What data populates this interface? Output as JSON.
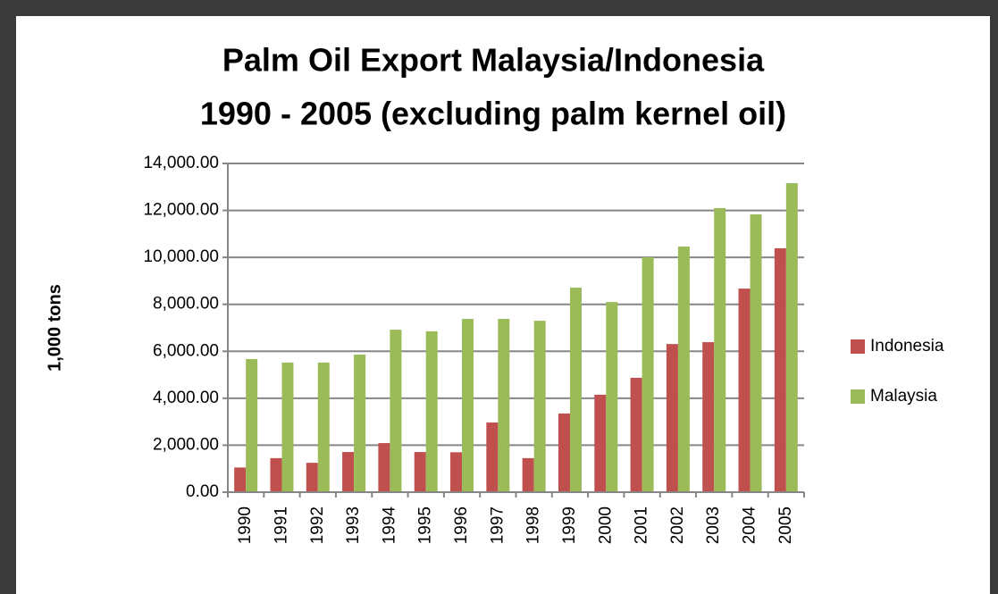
{
  "chart_data": {
    "type": "bar",
    "title": [
      "Palm Oil Export Malaysia/Indonesia",
      "1990 - 2005 (excluding palm kernel oil)"
    ],
    "y_label": "1,000 tons",
    "categories": [
      "1990",
      "1991",
      "1992",
      "1993",
      "1994",
      "1995",
      "1996",
      "1997",
      "1998",
      "1999",
      "2000",
      "2001",
      "2002",
      "2003",
      "2004",
      "2005"
    ],
    "series": [
      {
        "name": "Indonesia",
        "color": "#c0504d",
        "values": [
          1050,
          1450,
          1250,
          1710,
          2090,
          1710,
          1700,
          2970,
          1450,
          3350,
          4150,
          4870,
          6310,
          6390,
          8670,
          10390
        ]
      },
      {
        "name": "Malaysia",
        "color": "#9bbb59",
        "values": [
          5670,
          5520,
          5520,
          5860,
          6920,
          6850,
          7380,
          7380,
          7300,
          8710,
          8100,
          10000,
          10460,
          12100,
          11830,
          13160
        ]
      }
    ],
    "ylim": [
      0,
      14000
    ],
    "yticks": [
      {
        "value": 0,
        "label": "0.00"
      },
      {
        "value": 2000,
        "label": "2,000.00"
      },
      {
        "value": 4000,
        "label": "4,000.00"
      },
      {
        "value": 6000,
        "label": "6,000.00"
      },
      {
        "value": 8000,
        "label": "8,000.00"
      },
      {
        "value": 10000,
        "label": "10,000.00"
      },
      {
        "value": 12000,
        "label": "12,000.00"
      },
      {
        "value": 14000,
        "label": "14,000.00"
      }
    ],
    "grid": true,
    "legend": "right"
  }
}
